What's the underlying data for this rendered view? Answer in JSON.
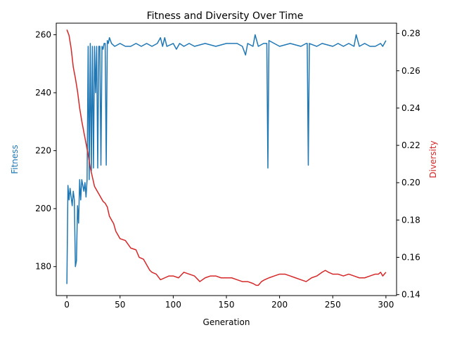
{
  "chart_data": {
    "type": "line",
    "title": "Fitness and Diversity Over Time",
    "xlabel": "Generation",
    "xlim": [
      -10,
      310
    ],
    "xticks": [
      0,
      50,
      100,
      150,
      200,
      250,
      300
    ],
    "grid": false,
    "axes": [
      {
        "side": "left",
        "label": "Fitness",
        "ylim": [
          170,
          264
        ],
        "ticks": [
          180,
          200,
          220,
          240,
          260
        ],
        "tick_labels": [
          "180",
          "200",
          "220",
          "240",
          "260"
        ]
      },
      {
        "side": "right",
        "label": "Diversity",
        "ylim": [
          0.1395,
          0.2855
        ],
        "ticks": [
          0.14,
          0.16,
          0.18,
          0.2,
          0.22,
          0.24,
          0.26,
          0.28
        ],
        "tick_labels": [
          "0.14",
          "0.16",
          "0.18",
          "0.20",
          "0.22",
          "0.24",
          "0.26",
          "0.28"
        ]
      }
    ],
    "series": [
      {
        "name": "Fitness",
        "axis": "left",
        "color": "#1f77b4",
        "points": [
          [
            0,
            174
          ],
          [
            1,
            208
          ],
          [
            2,
            203
          ],
          [
            3,
            207
          ],
          [
            4,
            204
          ],
          [
            5,
            201
          ],
          [
            6,
            206
          ],
          [
            7,
            203
          ],
          [
            8,
            180
          ],
          [
            9,
            182
          ],
          [
            10,
            201
          ],
          [
            11,
            195
          ],
          [
            12,
            210
          ],
          [
            13,
            203
          ],
          [
            14,
            210
          ],
          [
            15,
            208
          ],
          [
            16,
            206
          ],
          [
            17,
            209
          ],
          [
            18,
            204
          ],
          [
            19,
            210
          ],
          [
            20,
            256
          ],
          [
            21,
            210
          ],
          [
            22,
            257
          ],
          [
            23,
            213
          ],
          [
            24,
            256
          ],
          [
            25,
            214
          ],
          [
            26,
            256
          ],
          [
            27,
            240
          ],
          [
            28,
            256
          ],
          [
            29,
            214
          ],
          [
            30,
            256
          ],
          [
            31,
            256
          ],
          [
            32,
            215
          ],
          [
            33,
            256
          ],
          [
            34,
            255
          ],
          [
            35,
            257
          ],
          [
            36,
            257
          ],
          [
            37,
            215
          ],
          [
            38,
            258
          ],
          [
            39,
            257
          ],
          [
            40,
            259
          ],
          [
            42,
            257
          ],
          [
            45,
            256
          ],
          [
            50,
            257
          ],
          [
            55,
            256
          ],
          [
            60,
            256
          ],
          [
            65,
            257
          ],
          [
            70,
            256
          ],
          [
            75,
            257
          ],
          [
            80,
            256
          ],
          [
            85,
            257
          ],
          [
            88,
            259
          ],
          [
            90,
            256
          ],
          [
            92,
            259
          ],
          [
            94,
            256
          ],
          [
            100,
            257
          ],
          [
            103,
            255
          ],
          [
            106,
            257
          ],
          [
            110,
            256
          ],
          [
            115,
            257
          ],
          [
            120,
            256
          ],
          [
            130,
            257
          ],
          [
            140,
            256
          ],
          [
            150,
            257
          ],
          [
            160,
            257
          ],
          [
            165,
            256
          ],
          [
            168,
            253
          ],
          [
            170,
            257
          ],
          [
            175,
            256
          ],
          [
            177,
            260
          ],
          [
            180,
            256
          ],
          [
            185,
            257
          ],
          [
            188,
            257
          ],
          [
            189,
            214
          ],
          [
            190,
            258
          ],
          [
            195,
            257
          ],
          [
            200,
            256
          ],
          [
            210,
            257
          ],
          [
            220,
            256
          ],
          [
            225,
            257
          ],
          [
            226,
            257
          ],
          [
            227,
            215
          ],
          [
            228,
            257
          ],
          [
            235,
            256
          ],
          [
            240,
            257
          ],
          [
            250,
            256
          ],
          [
            255,
            257
          ],
          [
            260,
            256
          ],
          [
            265,
            257
          ],
          [
            270,
            256
          ],
          [
            272,
            260
          ],
          [
            275,
            256
          ],
          [
            280,
            257
          ],
          [
            285,
            256
          ],
          [
            290,
            256
          ],
          [
            295,
            257
          ],
          [
            297,
            256
          ],
          [
            300,
            258
          ]
        ]
      },
      {
        "name": "Diversity",
        "axis": "right",
        "color": "#d62728",
        "points": [
          [
            0,
            0.282
          ],
          [
            2,
            0.279
          ],
          [
            4,
            0.272
          ],
          [
            6,
            0.262
          ],
          [
            8,
            0.256
          ],
          [
            10,
            0.249
          ],
          [
            12,
            0.24
          ],
          [
            14,
            0.233
          ],
          [
            16,
            0.227
          ],
          [
            18,
            0.221
          ],
          [
            20,
            0.215
          ],
          [
            22,
            0.208
          ],
          [
            24,
            0.203
          ],
          [
            26,
            0.198
          ],
          [
            28,
            0.196
          ],
          [
            30,
            0.194
          ],
          [
            32,
            0.192
          ],
          [
            34,
            0.19
          ],
          [
            36,
            0.189
          ],
          [
            38,
            0.187
          ],
          [
            40,
            0.182
          ],
          [
            42,
            0.18
          ],
          [
            44,
            0.178
          ],
          [
            46,
            0.174
          ],
          [
            48,
            0.172
          ],
          [
            50,
            0.17
          ],
          [
            55,
            0.169
          ],
          [
            60,
            0.165
          ],
          [
            65,
            0.164
          ],
          [
            68,
            0.16
          ],
          [
            72,
            0.159
          ],
          [
            75,
            0.156
          ],
          [
            78,
            0.153
          ],
          [
            80,
            0.152
          ],
          [
            84,
            0.151
          ],
          [
            88,
            0.148
          ],
          [
            92,
            0.149
          ],
          [
            96,
            0.15
          ],
          [
            100,
            0.15
          ],
          [
            105,
            0.149
          ],
          [
            110,
            0.152
          ],
          [
            115,
            0.151
          ],
          [
            120,
            0.15
          ],
          [
            125,
            0.147
          ],
          [
            130,
            0.149
          ],
          [
            135,
            0.15
          ],
          [
            140,
            0.15
          ],
          [
            145,
            0.149
          ],
          [
            150,
            0.149
          ],
          [
            155,
            0.149
          ],
          [
            160,
            0.148
          ],
          [
            165,
            0.147
          ],
          [
            170,
            0.147
          ],
          [
            175,
            0.146
          ],
          [
            178,
            0.145
          ],
          [
            180,
            0.145
          ],
          [
            183,
            0.147
          ],
          [
            186,
            0.148
          ],
          [
            190,
            0.149
          ],
          [
            195,
            0.15
          ],
          [
            200,
            0.151
          ],
          [
            205,
            0.151
          ],
          [
            210,
            0.15
          ],
          [
            215,
            0.149
          ],
          [
            220,
            0.148
          ],
          [
            225,
            0.147
          ],
          [
            230,
            0.149
          ],
          [
            235,
            0.15
          ],
          [
            240,
            0.152
          ],
          [
            243,
            0.153
          ],
          [
            246,
            0.152
          ],
          [
            250,
            0.151
          ],
          [
            255,
            0.151
          ],
          [
            260,
            0.15
          ],
          [
            265,
            0.151
          ],
          [
            270,
            0.15
          ],
          [
            275,
            0.149
          ],
          [
            280,
            0.149
          ],
          [
            285,
            0.15
          ],
          [
            290,
            0.151
          ],
          [
            293,
            0.151
          ],
          [
            295,
            0.152
          ],
          [
            297,
            0.15
          ],
          [
            300,
            0.152
          ]
        ]
      }
    ]
  }
}
